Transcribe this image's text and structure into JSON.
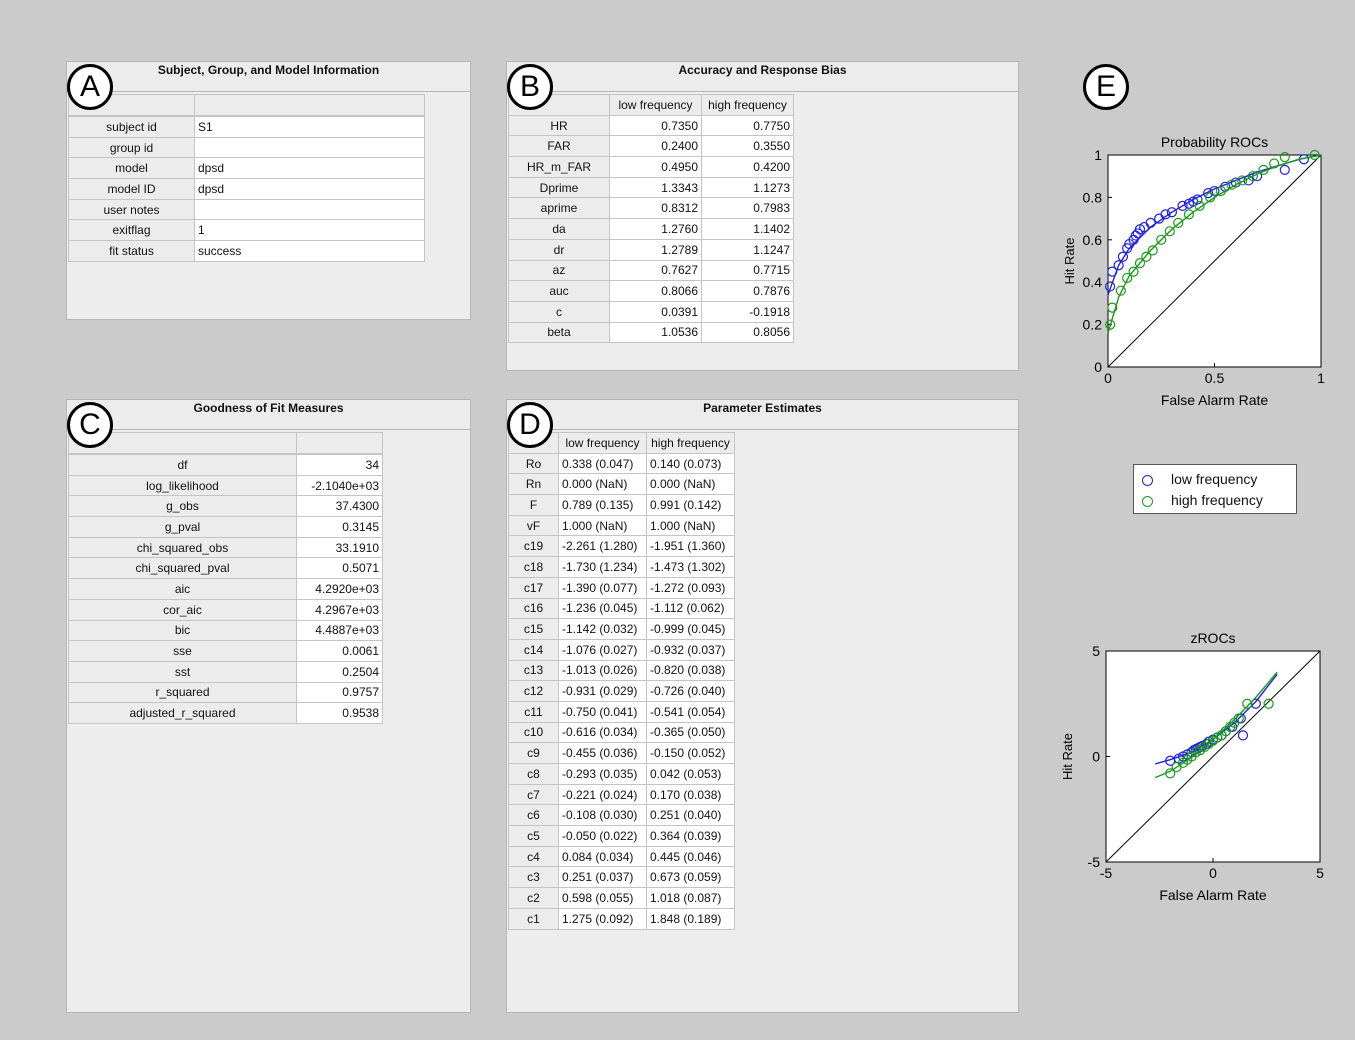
{
  "badges": {
    "a": "A",
    "b": "B",
    "c": "C",
    "d": "D",
    "e": "E"
  },
  "colors": {
    "low": "#1f1fe0",
    "high": "#1a9a1a"
  },
  "panel_a": {
    "title": "Subject, Group, and Model Information",
    "rows": [
      {
        "label": "subject id",
        "value": "S1"
      },
      {
        "label": "group id",
        "value": ""
      },
      {
        "label": "model",
        "value": "dpsd"
      },
      {
        "label": "model ID",
        "value": "dpsd"
      },
      {
        "label": "user notes",
        "value": ""
      },
      {
        "label": "exitflag",
        "value": "1"
      },
      {
        "label": "fit status",
        "value": "success"
      }
    ]
  },
  "panel_b": {
    "title": "Accuracy and Response Bias",
    "columns": [
      "low frequency",
      "high frequency"
    ],
    "rows": [
      {
        "label": "HR",
        "low": "0.7350",
        "high": "0.7750"
      },
      {
        "label": "FAR",
        "low": "0.2400",
        "high": "0.3550"
      },
      {
        "label": "HR_m_FAR",
        "low": "0.4950",
        "high": "0.4200"
      },
      {
        "label": "Dprime",
        "low": "1.3343",
        "high": "1.1273"
      },
      {
        "label": "aprime",
        "low": "0.8312",
        "high": "0.7983"
      },
      {
        "label": "da",
        "low": "1.2760",
        "high": "1.1402"
      },
      {
        "label": "dr",
        "low": "1.2789",
        "high": "1.1247"
      },
      {
        "label": "az",
        "low": "0.7627",
        "high": "0.7715"
      },
      {
        "label": "auc",
        "low": "0.8066",
        "high": "0.7876"
      },
      {
        "label": "c",
        "low": "0.0391",
        "high": "-0.1918"
      },
      {
        "label": "beta",
        "low": "1.0536",
        "high": "0.8056"
      }
    ]
  },
  "panel_c": {
    "title": "Goodness of Fit Measures",
    "rows": [
      {
        "label": "df",
        "value": "34"
      },
      {
        "label": "log_likelihood",
        "value": "-2.1040e+03"
      },
      {
        "label": "g_obs",
        "value": "37.4300"
      },
      {
        "label": "g_pval",
        "value": "0.3145"
      },
      {
        "label": "chi_squared_obs",
        "value": "33.1910"
      },
      {
        "label": "chi_squared_pval",
        "value": "0.5071"
      },
      {
        "label": "aic",
        "value": "4.2920e+03"
      },
      {
        "label": "cor_aic",
        "value": "4.2967e+03"
      },
      {
        "label": "bic",
        "value": "4.4887e+03"
      },
      {
        "label": "sse",
        "value": "0.0061"
      },
      {
        "label": "sst",
        "value": "0.2504"
      },
      {
        "label": "r_squared",
        "value": "0.9757"
      },
      {
        "label": "adjusted_r_squared",
        "value": "0.9538"
      }
    ]
  },
  "panel_d": {
    "title": "Parameter Estimates",
    "columns": [
      "low frequency",
      "high frequency"
    ],
    "rows": [
      {
        "label": "Ro",
        "low": "0.338 (0.047)",
        "high": "0.140 (0.073)"
      },
      {
        "label": "Rn",
        "low": "0.000 (NaN)",
        "high": "0.000 (NaN)"
      },
      {
        "label": "F",
        "low": "0.789 (0.135)",
        "high": "0.991 (0.142)"
      },
      {
        "label": "vF",
        "low": "1.000 (NaN)",
        "high": "1.000 (NaN)"
      },
      {
        "label": "c19",
        "low": "-2.261 (1.280)",
        "high": "-1.951 (1.360)"
      },
      {
        "label": "c18",
        "low": "-1.730 (1.234)",
        "high": "-1.473 (1.302)"
      },
      {
        "label": "c17",
        "low": "-1.390 (0.077)",
        "high": "-1.272 (0.093)"
      },
      {
        "label": "c16",
        "low": "-1.236 (0.045)",
        "high": "-1.112 (0.062)"
      },
      {
        "label": "c15",
        "low": "-1.142 (0.032)",
        "high": "-0.999 (0.045)"
      },
      {
        "label": "c14",
        "low": "-1.076 (0.027)",
        "high": "-0.932 (0.037)"
      },
      {
        "label": "c13",
        "low": "-1.013 (0.026)",
        "high": "-0.820 (0.038)"
      },
      {
        "label": "c12",
        "low": "-0.931 (0.029)",
        "high": "-0.726 (0.040)"
      },
      {
        "label": "c11",
        "low": "-0.750 (0.041)",
        "high": "-0.541 (0.054)"
      },
      {
        "label": "c10",
        "low": "-0.616 (0.034)",
        "high": "-0.365 (0.050)"
      },
      {
        "label": "c9",
        "low": "-0.455 (0.036)",
        "high": "-0.150 (0.052)"
      },
      {
        "label": "c8",
        "low": "-0.293 (0.035)",
        "high": "0.042 (0.053)"
      },
      {
        "label": "c7",
        "low": "-0.221 (0.024)",
        "high": "0.170 (0.038)"
      },
      {
        "label": "c6",
        "low": "-0.108 (0.030)",
        "high": "0.251 (0.040)"
      },
      {
        "label": "c5",
        "low": "-0.050 (0.022)",
        "high": "0.364 (0.039)"
      },
      {
        "label": "c4",
        "low": "0.084 (0.034)",
        "high": "0.445 (0.046)"
      },
      {
        "label": "c3",
        "low": "0.251 (0.037)",
        "high": "0.673 (0.059)"
      },
      {
        "label": "c2",
        "low": "0.598 (0.055)",
        "high": "1.018 (0.087)"
      },
      {
        "label": "c1",
        "low": "1.275 (0.092)",
        "high": "1.848 (0.189)"
      }
    ]
  },
  "legend": {
    "low": "low frequency",
    "high": "high frequency"
  },
  "chart_data": [
    {
      "type": "scatter",
      "title": "Probability ROCs",
      "xlabel": "False Alarm Rate",
      "ylabel": "Hit Rate",
      "xlim": [
        0,
        1
      ],
      "ylim": [
        0,
        1
      ],
      "xticks": [
        "0",
        "0.5",
        "1"
      ],
      "yticks": [
        "0",
        "0.2",
        "0.4",
        "0.6",
        "0.8",
        "1"
      ],
      "grid": false,
      "series": [
        {
          "name": "low frequency",
          "color": "#1f1fe0",
          "points": [
            [
              0.01,
              0.38
            ],
            [
              0.02,
              0.45
            ],
            [
              0.05,
              0.48
            ],
            [
              0.07,
              0.52
            ],
            [
              0.09,
              0.56
            ],
            [
              0.1,
              0.58
            ],
            [
              0.12,
              0.6
            ],
            [
              0.13,
              0.62
            ],
            [
              0.14,
              0.63
            ],
            [
              0.15,
              0.65
            ],
            [
              0.17,
              0.66
            ],
            [
              0.2,
              0.68
            ],
            [
              0.24,
              0.7
            ],
            [
              0.27,
              0.72
            ],
            [
              0.3,
              0.73
            ],
            [
              0.35,
              0.76
            ],
            [
              0.38,
              0.77
            ],
            [
              0.4,
              0.78
            ],
            [
              0.42,
              0.79
            ],
            [
              0.47,
              0.82
            ],
            [
              0.5,
              0.83
            ],
            [
              0.55,
              0.85
            ],
            [
              0.6,
              0.87
            ],
            [
              0.66,
              0.88
            ],
            [
              0.7,
              0.9
            ],
            [
              0.83,
              0.93
            ],
            [
              0.92,
              0.98
            ]
          ],
          "fit": [
            [
              0,
              0.34
            ],
            [
              0.05,
              0.48
            ],
            [
              0.1,
              0.56
            ],
            [
              0.2,
              0.66
            ],
            [
              0.3,
              0.73
            ],
            [
              0.4,
              0.79
            ],
            [
              0.5,
              0.84
            ],
            [
              0.6,
              0.88
            ],
            [
              0.7,
              0.92
            ],
            [
              0.8,
              0.95
            ],
            [
              0.9,
              0.98
            ],
            [
              1,
              1
            ]
          ]
        },
        {
          "name": "high frequency",
          "color": "#1a9a1a",
          "points": [
            [
              0.01,
              0.2
            ],
            [
              0.02,
              0.28
            ],
            [
              0.06,
              0.36
            ],
            [
              0.09,
              0.42
            ],
            [
              0.12,
              0.45
            ],
            [
              0.15,
              0.49
            ],
            [
              0.18,
              0.52
            ],
            [
              0.21,
              0.55
            ],
            [
              0.25,
              0.6
            ],
            [
              0.29,
              0.64
            ],
            [
              0.33,
              0.68
            ],
            [
              0.38,
              0.72
            ],
            [
              0.43,
              0.76
            ],
            [
              0.48,
              0.8
            ],
            [
              0.53,
              0.83
            ],
            [
              0.58,
              0.86
            ],
            [
              0.63,
              0.88
            ],
            [
              0.68,
              0.9
            ],
            [
              0.73,
              0.93
            ],
            [
              0.78,
              0.96
            ],
            [
              0.83,
              0.99
            ],
            [
              0.97,
              1.0
            ]
          ],
          "fit": [
            [
              0,
              0.16
            ],
            [
              0.05,
              0.33
            ],
            [
              0.1,
              0.43
            ],
            [
              0.2,
              0.55
            ],
            [
              0.3,
              0.65
            ],
            [
              0.4,
              0.73
            ],
            [
              0.5,
              0.8
            ],
            [
              0.6,
              0.86
            ],
            [
              0.7,
              0.91
            ],
            [
              0.8,
              0.95
            ],
            [
              0.9,
              0.98
            ],
            [
              1,
              1
            ]
          ]
        }
      ],
      "diagonal": true
    },
    {
      "type": "scatter",
      "title": "zROCs",
      "xlabel": "False Alarm Rate",
      "ylabel": "Hit Rate",
      "xlim": [
        -5,
        5
      ],
      "ylim": [
        -5,
        5
      ],
      "xticks": [
        "-5",
        "0",
        "5"
      ],
      "yticks": [
        "-5",
        "0",
        "5"
      ],
      "grid": false,
      "series": [
        {
          "name": "low frequency",
          "color": "#1f1fe0",
          "points": [
            [
              -2.0,
              -0.2
            ],
            [
              -1.6,
              -0.1
            ],
            [
              -1.4,
              0.0
            ],
            [
              -1.2,
              0.1
            ],
            [
              -1.0,
              0.2
            ],
            [
              -0.9,
              0.3
            ],
            [
              -0.8,
              0.35
            ],
            [
              -0.7,
              0.4
            ],
            [
              -0.6,
              0.45
            ],
            [
              -0.5,
              0.5
            ],
            [
              -0.3,
              0.6
            ],
            [
              -0.2,
              0.7
            ],
            [
              0.0,
              0.8
            ],
            [
              0.2,
              0.9
            ],
            [
              0.4,
              1.0
            ],
            [
              0.6,
              1.2
            ],
            [
              0.9,
              1.4
            ],
            [
              1.3,
              1.8
            ],
            [
              2.0,
              2.5
            ],
            [
              1.4,
              1.0
            ]
          ],
          "fit": [
            [
              -2.7,
              -0.35
            ],
            [
              -2,
              -0.15
            ],
            [
              -1,
              0.2
            ],
            [
              0,
              0.8
            ],
            [
              1,
              1.6
            ],
            [
              2,
              2.6
            ],
            [
              3,
              3.9
            ]
          ]
        },
        {
          "name": "high frequency",
          "color": "#1a9a1a",
          "points": [
            [
              -2.0,
              -0.8
            ],
            [
              -1.7,
              -0.5
            ],
            [
              -1.4,
              -0.3
            ],
            [
              -1.2,
              -0.15
            ],
            [
              -1.0,
              0.0
            ],
            [
              -0.8,
              0.2
            ],
            [
              -0.6,
              0.3
            ],
            [
              -0.4,
              0.45
            ],
            [
              -0.2,
              0.6
            ],
            [
              0.0,
              0.75
            ],
            [
              0.2,
              0.9
            ],
            [
              0.4,
              1.0
            ],
            [
              0.6,
              1.2
            ],
            [
              0.8,
              1.4
            ],
            [
              1.0,
              1.6
            ],
            [
              1.2,
              1.8
            ],
            [
              1.6,
              2.5
            ],
            [
              2.6,
              2.5
            ]
          ],
          "fit": [
            [
              -2.7,
              -1.0
            ],
            [
              -2,
              -0.7
            ],
            [
              -1,
              -0.05
            ],
            [
              0,
              0.8
            ],
            [
              1,
              1.75
            ],
            [
              2,
              2.8
            ],
            [
              3,
              4.0
            ]
          ]
        }
      ],
      "diagonal": true
    }
  ]
}
